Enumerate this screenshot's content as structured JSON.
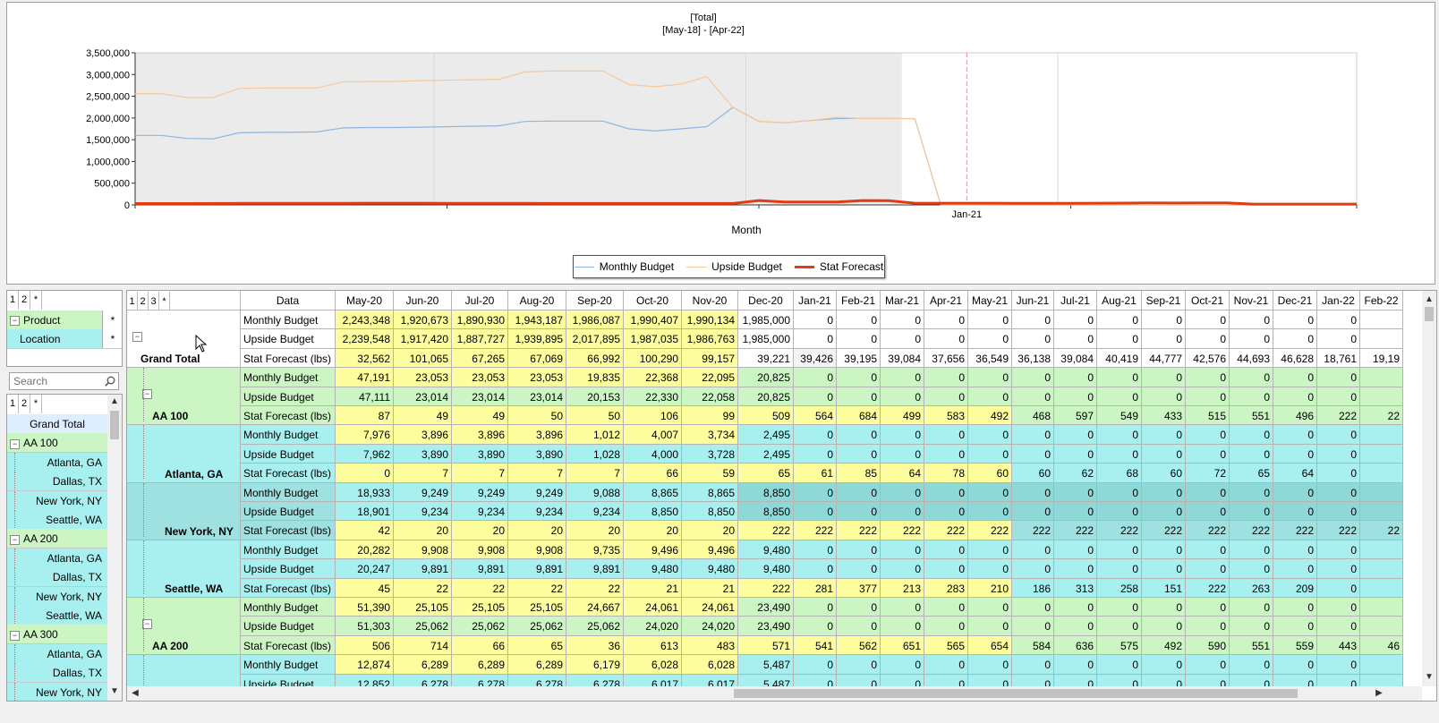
{
  "chart": {
    "title": "[Total]",
    "subtitle": "[May-18] - [Apr-22]",
    "xlabel": "Month",
    "x_tick_label": "Jan-21",
    "y_ticks": [
      "3,500,000",
      "3,000,000",
      "2,500,000",
      "2,000,000",
      "1,500,000",
      "1,000,000",
      "500,000",
      "0"
    ],
    "colors": {
      "monthly_budget": "#8db4e2",
      "upside_budget": "#f5c99a",
      "stat_forecast": "#e23a12",
      "history_shade": "#ebebeb"
    }
  },
  "chart_data": {
    "type": "line",
    "x_range": [
      "May-18",
      "Apr-22"
    ],
    "ylim": [
      0,
      3500000
    ],
    "current_month": "Jan-21",
    "history_end": "Nov-20",
    "legend": "bottom-center",
    "series": [
      {
        "name": "Monthly Budget",
        "values": [
          1600000,
          1600000,
          1530000,
          1520000,
          1660000,
          1670000,
          1670000,
          1680000,
          1770000,
          1780000,
          1780000,
          1790000,
          1800000,
          1810000,
          1820000,
          1920000,
          1930000,
          1930000,
          1930000,
          1750000,
          1700000,
          1750000,
          1800000,
          2243348,
          1920673,
          1890930,
          1943187,
          1986087,
          1990407,
          1990134,
          1985000,
          0,
          0,
          0,
          0,
          0,
          0,
          0,
          0,
          0,
          0,
          0,
          0,
          0,
          0,
          0,
          0,
          0
        ]
      },
      {
        "name": "Upside Budget",
        "values": [
          2560000,
          2560000,
          2470000,
          2470000,
          2680000,
          2690000,
          2690000,
          2690000,
          2830000,
          2840000,
          2840000,
          2860000,
          2870000,
          2880000,
          2890000,
          3060000,
          3080000,
          3080000,
          3080000,
          2770000,
          2720000,
          2780000,
          2950000,
          2239548,
          1917420,
          1887727,
          1939895,
          2017895,
          1987035,
          1986763,
          1985000,
          0,
          0,
          0,
          0,
          0,
          0,
          0,
          0,
          0,
          0,
          0,
          0,
          0,
          0,
          0,
          0,
          0
        ]
      },
      {
        "name": "Stat Forecast",
        "values": [
          30000,
          30000,
          30000,
          32000,
          34000,
          35000,
          36000,
          37000,
          38000,
          40000,
          40000,
          40000,
          38000,
          36000,
          35000,
          34000,
          33000,
          33000,
          32000,
          32000,
          32000,
          32000,
          33000,
          32562,
          101065,
          67265,
          67069,
          66992,
          100290,
          99157,
          39221,
          39426,
          39195,
          39084,
          37656,
          36549,
          36138,
          39084,
          40419,
          44777,
          42576,
          44693,
          46628,
          18761,
          19190,
          19000,
          19000,
          19000
        ]
      }
    ]
  },
  "legend": [
    {
      "label": "Monthly Budget",
      "color": "#8db4e2",
      "width": 1
    },
    {
      "label": "Upside Budget",
      "color": "#f5c99a",
      "width": 1
    },
    {
      "label": "Stat Forecast",
      "color": "#e23a12",
      "width": 3
    }
  ],
  "level_buttons_small": [
    "1",
    "2",
    "*"
  ],
  "level_buttons_grid": [
    "1",
    "2",
    "3",
    "*"
  ],
  "dims": [
    {
      "label": "Product",
      "star": "*"
    },
    {
      "label": "Location",
      "star": "*"
    }
  ],
  "search": {
    "placeholder": "Search"
  },
  "tree": [
    {
      "label": "Grand Total",
      "type": "total"
    },
    {
      "label": "AA 100",
      "type": "group"
    },
    {
      "label": "Atlanta, GA",
      "type": "leaf"
    },
    {
      "label": "Dallas, TX",
      "type": "leaf"
    },
    {
      "label": "New York, NY",
      "type": "leaf"
    },
    {
      "label": "Seattle, WA",
      "type": "leaf"
    },
    {
      "label": "AA 200",
      "type": "group"
    },
    {
      "label": "Atlanta, GA",
      "type": "leaf"
    },
    {
      "label": "Dallas, TX",
      "type": "leaf"
    },
    {
      "label": "New York, NY",
      "type": "leaf"
    },
    {
      "label": "Seattle, WA",
      "type": "leaf"
    },
    {
      "label": "AA 300",
      "type": "group"
    },
    {
      "label": "Atlanta, GA",
      "type": "leaf"
    },
    {
      "label": "Dallas, TX",
      "type": "leaf"
    },
    {
      "label": "New York, NY",
      "type": "leaf"
    }
  ],
  "grid": {
    "data_header": "Data",
    "months": [
      "May-20",
      "Jun-20",
      "Jul-20",
      "Aug-20",
      "Sep-20",
      "Oct-20",
      "Nov-20",
      "Dec-20",
      "Jan-21",
      "Feb-21",
      "Mar-21",
      "Apr-21",
      "May-21",
      "Jun-21",
      "Jul-21",
      "Aug-21",
      "Sep-21",
      "Oct-21",
      "Nov-21",
      "Dec-21",
      "Jan-22",
      "Feb-22"
    ],
    "row_labels": [
      "Monthly Budget",
      "Upside Budget",
      "Stat Forecast (lbs)"
    ],
    "groups": [
      {
        "label": "Grand Total",
        "theme": "total",
        "level": 0,
        "rows": [
          [
            "2,243,348",
            "1,920,673",
            "1,890,930",
            "1,943,187",
            "1,986,087",
            "1,990,407",
            "1,990,134",
            "1,985,000",
            "0",
            "0",
            "0",
            "0",
            "0",
            "0",
            "0",
            "0",
            "0",
            "0",
            "0",
            "0",
            "0",
            ""
          ],
          [
            "2,239,548",
            "1,917,420",
            "1,887,727",
            "1,939,895",
            "2,017,895",
            "1,987,035",
            "1,986,763",
            "1,985,000",
            "0",
            "0",
            "0",
            "0",
            "0",
            "0",
            "0",
            "0",
            "0",
            "0",
            "0",
            "0",
            "0",
            ""
          ],
          [
            "32,562",
            "101,065",
            "67,265",
            "67,069",
            "66,992",
            "100,290",
            "99,157",
            "39,221",
            "39,426",
            "39,195",
            "39,084",
            "37,656",
            "36,549",
            "36,138",
            "39,084",
            "40,419",
            "44,777",
            "42,576",
            "44,693",
            "46,628",
            "18,761",
            "19,19"
          ]
        ]
      },
      {
        "label": "AA 100",
        "theme": "product",
        "level": 1,
        "rows": [
          [
            "47,191",
            "23,053",
            "23,053",
            "23,053",
            "19,835",
            "22,368",
            "22,095",
            "20,825",
            "0",
            "0",
            "0",
            "0",
            "0",
            "0",
            "0",
            "0",
            "0",
            "0",
            "0",
            "0",
            "0",
            ""
          ],
          [
            "47,111",
            "23,014",
            "23,014",
            "23,014",
            "20,153",
            "22,330",
            "22,058",
            "20,825",
            "0",
            "0",
            "0",
            "0",
            "0",
            "0",
            "0",
            "0",
            "0",
            "0",
            "0",
            "0",
            "0",
            ""
          ],
          [
            "87",
            "49",
            "49",
            "50",
            "50",
            "106",
            "99",
            "509",
            "564",
            "684",
            "499",
            "583",
            "492",
            "468",
            "597",
            "549",
            "433",
            "515",
            "551",
            "496",
            "222",
            "22"
          ]
        ]
      },
      {
        "label": "Atlanta, GA",
        "theme": "location",
        "level": 2,
        "rows": [
          [
            "7,976",
            "3,896",
            "3,896",
            "3,896",
            "1,012",
            "4,007",
            "3,734",
            "2,495",
            "0",
            "0",
            "0",
            "0",
            "0",
            "0",
            "0",
            "0",
            "0",
            "0",
            "0",
            "0",
            "0",
            ""
          ],
          [
            "7,962",
            "3,890",
            "3,890",
            "3,890",
            "1,028",
            "4,000",
            "3,728",
            "2,495",
            "0",
            "0",
            "0",
            "0",
            "0",
            "0",
            "0",
            "0",
            "0",
            "0",
            "0",
            "0",
            "0",
            ""
          ],
          [
            "0",
            "7",
            "7",
            "7",
            "7",
            "66",
            "59",
            "65",
            "61",
            "85",
            "64",
            "78",
            "60",
            "60",
            "62",
            "68",
            "60",
            "72",
            "65",
            "64",
            "0",
            ""
          ]
        ]
      },
      {
        "label": "New York, NY",
        "theme": "selected",
        "level": 2,
        "rows": [
          [
            "18,933",
            "9,249",
            "9,249",
            "9,249",
            "9,088",
            "8,865",
            "8,865",
            "8,850",
            "0",
            "0",
            "0",
            "0",
            "0",
            "0",
            "0",
            "0",
            "0",
            "0",
            "0",
            "0",
            "0",
            ""
          ],
          [
            "18,901",
            "9,234",
            "9,234",
            "9,234",
            "9,234",
            "8,850",
            "8,850",
            "8,850",
            "0",
            "0",
            "0",
            "0",
            "0",
            "0",
            "0",
            "0",
            "0",
            "0",
            "0",
            "0",
            "0",
            ""
          ],
          [
            "42",
            "20",
            "20",
            "20",
            "20",
            "20",
            "20",
            "222",
            "222",
            "222",
            "222",
            "222",
            "222",
            "222",
            "222",
            "222",
            "222",
            "222",
            "222",
            "222",
            "222",
            "22"
          ]
        ]
      },
      {
        "label": "Seattle, WA",
        "theme": "location",
        "level": 2,
        "rows": [
          [
            "20,282",
            "9,908",
            "9,908",
            "9,908",
            "9,735",
            "9,496",
            "9,496",
            "9,480",
            "0",
            "0",
            "0",
            "0",
            "0",
            "0",
            "0",
            "0",
            "0",
            "0",
            "0",
            "0",
            "0",
            ""
          ],
          [
            "20,247",
            "9,891",
            "9,891",
            "9,891",
            "9,891",
            "9,480",
            "9,480",
            "9,480",
            "0",
            "0",
            "0",
            "0",
            "0",
            "0",
            "0",
            "0",
            "0",
            "0",
            "0",
            "0",
            "0",
            ""
          ],
          [
            "45",
            "22",
            "22",
            "22",
            "22",
            "21",
            "21",
            "222",
            "281",
            "377",
            "213",
            "283",
            "210",
            "186",
            "313",
            "258",
            "151",
            "222",
            "263",
            "209",
            "0",
            ""
          ]
        ]
      },
      {
        "label": "AA 200",
        "theme": "product",
        "level": 1,
        "rows": [
          [
            "51,390",
            "25,105",
            "25,105",
            "25,105",
            "24,667",
            "24,061",
            "24,061",
            "23,490",
            "0",
            "0",
            "0",
            "0",
            "0",
            "0",
            "0",
            "0",
            "0",
            "0",
            "0",
            "0",
            "0",
            ""
          ],
          [
            "51,303",
            "25,062",
            "25,062",
            "25,062",
            "25,062",
            "24,020",
            "24,020",
            "23,490",
            "0",
            "0",
            "0",
            "0",
            "0",
            "0",
            "0",
            "0",
            "0",
            "0",
            "0",
            "0",
            "0",
            ""
          ],
          [
            "506",
            "714",
            "66",
            "65",
            "36",
            "613",
            "483",
            "571",
            "541",
            "562",
            "651",
            "565",
            "654",
            "584",
            "636",
            "575",
            "492",
            "590",
            "551",
            "559",
            "443",
            "46"
          ]
        ]
      },
      {
        "label": "Atlanta, GA",
        "theme": "location",
        "level": 2,
        "rows": [
          [
            "12,874",
            "6,289",
            "6,289",
            "6,289",
            "6,179",
            "6,028",
            "6,028",
            "5,487",
            "0",
            "0",
            "0",
            "0",
            "0",
            "0",
            "0",
            "0",
            "0",
            "0",
            "0",
            "0",
            "0",
            ""
          ],
          [
            "12,852",
            "6,278",
            "6,278",
            "6,278",
            "6,278",
            "6,017",
            "6,017",
            "5,487",
            "0",
            "0",
            "0",
            "0",
            "0",
            "0",
            "0",
            "0",
            "0",
            "0",
            "0",
            "0",
            "0",
            ""
          ],
          [
            "",
            "",
            "",
            "",
            "",
            "",
            "",
            "",
            "",
            "",
            "",
            "",
            "",
            "",
            "",
            "",
            "",
            "",
            "",
            "",
            "",
            ""
          ]
        ]
      }
    ]
  }
}
